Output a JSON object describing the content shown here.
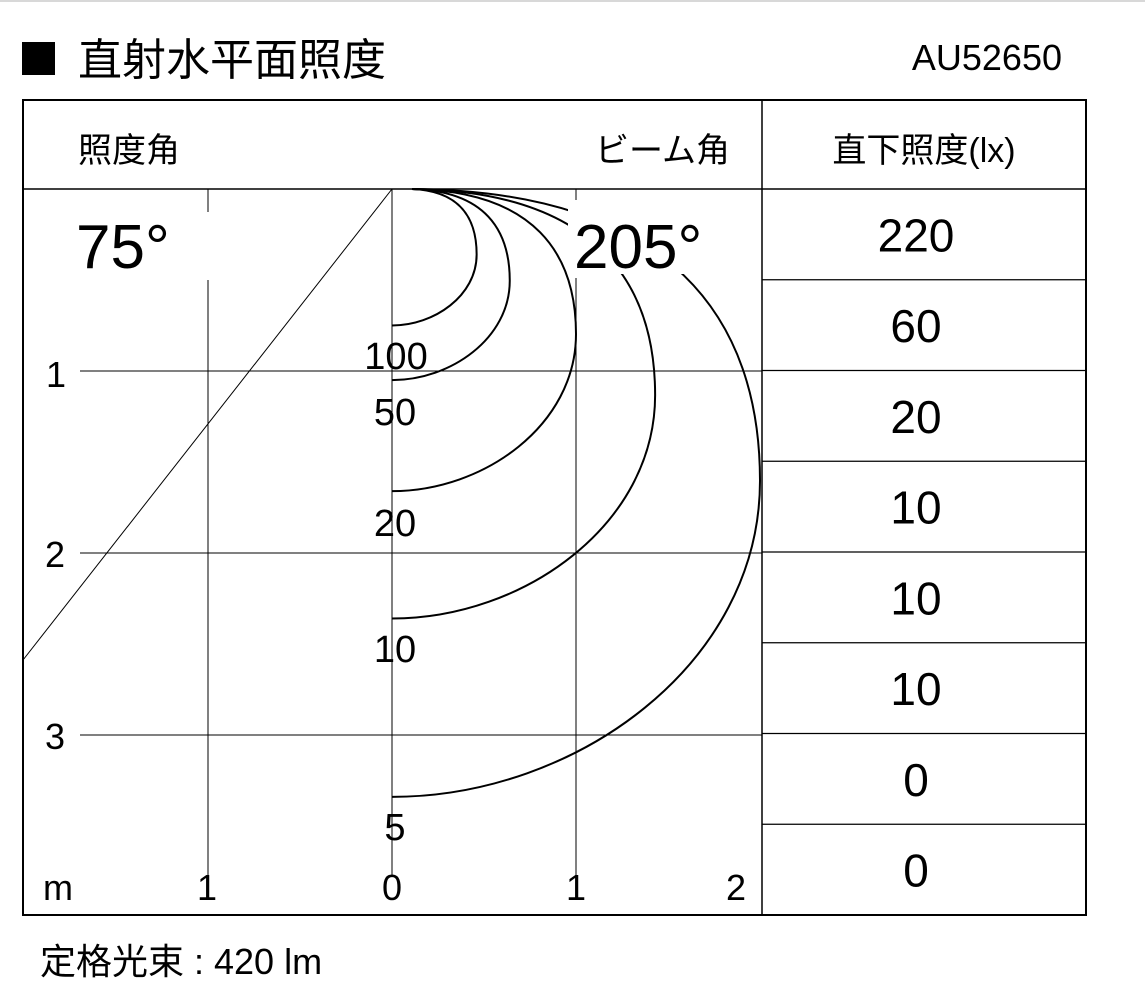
{
  "header": {
    "title_marker": "■",
    "title": "直射水平面照度",
    "model": "AU52650"
  },
  "table_header": {
    "illuminance_angle_label": "照度角",
    "beam_angle_label": "ビーム角",
    "direct_illuminance_label": "直下照度(lx)"
  },
  "angles": {
    "illuminance_angle": "75°",
    "beam_angle": "205°"
  },
  "axes": {
    "unit": "m",
    "x_ticks": [
      "1",
      "0",
      "1",
      "2"
    ],
    "y_ticks": [
      "1",
      "2",
      "3"
    ]
  },
  "contours": [
    {
      "label": "100",
      "depth_m": 0.75,
      "max_radius_m": 0.46
    },
    {
      "label": "50",
      "depth_m": 1.05,
      "max_radius_m": 0.64
    },
    {
      "label": "20",
      "depth_m": 1.66,
      "max_radius_m": 1.0
    },
    {
      "label": "10",
      "depth_m": 2.36,
      "max_radius_m": 1.43
    },
    {
      "label": "5",
      "depth_m": 3.34,
      "max_radius_m": 2.0
    }
  ],
  "direct_illuminance": [
    "220",
    "60",
    "20",
    "10",
    "10",
    "10",
    "0",
    "0"
  ],
  "footer": {
    "rated_flux": "定格光束 : 420 lm"
  }
}
